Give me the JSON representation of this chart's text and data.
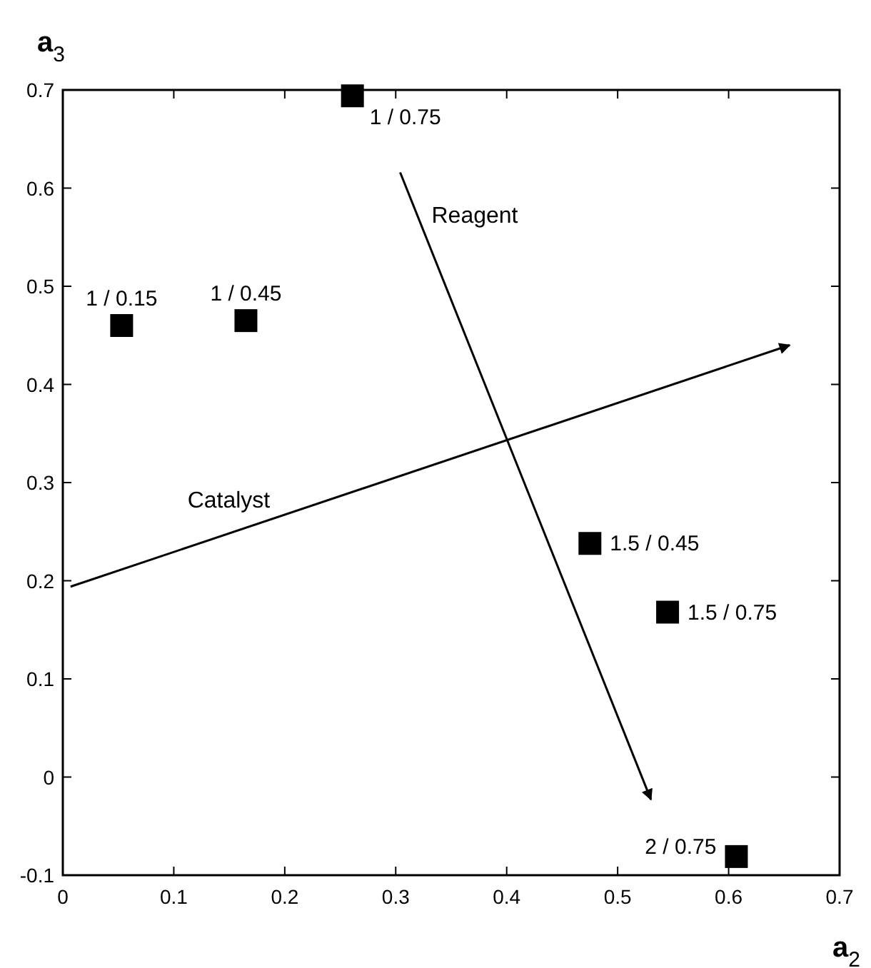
{
  "chart_data": {
    "type": "scatter",
    "xlabel": "a$_{2}$",
    "ylabel": "a$_{3}$",
    "xlim": [
      0,
      0.7
    ],
    "ylim": [
      -0.1,
      0.7
    ],
    "xticks": [
      0,
      0.1,
      0.2,
      0.3,
      0.4,
      0.5,
      0.6,
      0.7
    ],
    "yticks": [
      -0.1,
      0,
      0.1,
      0.2,
      0.3,
      0.4,
      0.5,
      0.6,
      0.7
    ],
    "grid": false,
    "marker": "square",
    "series": [
      {
        "color": "#000000",
        "x": [
          0.261,
          0.053,
          0.165,
          0.475,
          0.545,
          0.607
        ],
        "values": [
          0.694,
          0.46,
          0.465,
          0.238,
          0.168,
          -0.081
        ],
        "value_labels": [
          "1 / 0.75",
          "1 / 0.15",
          "1 / 0.45",
          "1.5 / 0.45",
          "1.5 / 0.75",
          "2 / 0.75"
        ]
      },
      {
        "type": "line",
        "name": "Reagent",
        "color": "#000000",
        "marker": "none",
        "line_style": "solid",
        "x": [
          0.304,
          0.53
        ],
        "values": [
          0.616,
          -0.023
        ]
      },
      {
        "type": "line",
        "name": "Catalyst",
        "color": "#000000",
        "marker": "none",
        "line_style": "solid",
        "x": [
          0.007,
          0.655
        ],
        "values": [
          0.194,
          0.44
        ]
      }
    ]
  }
}
